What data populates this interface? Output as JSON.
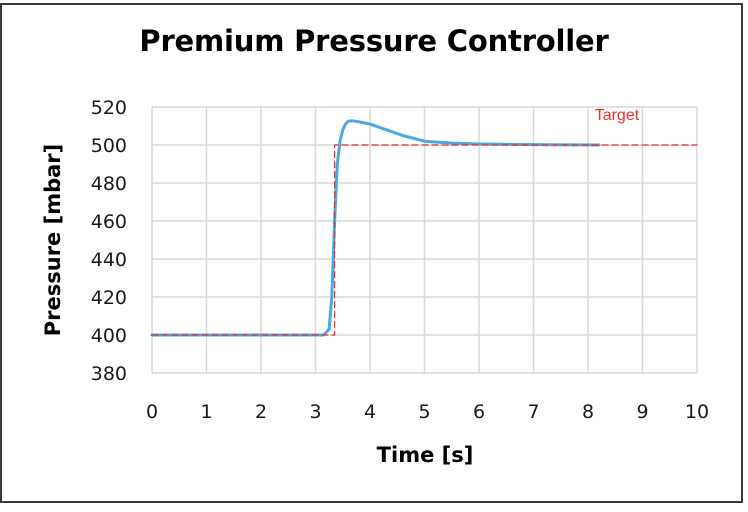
{
  "chart_data": {
    "type": "line",
    "title": "Premium Pressure Controller",
    "xlabel": "Time [s]",
    "ylabel": "Pressure [mbar]",
    "xlim": [
      0,
      10
    ],
    "ylim": [
      380,
      520
    ],
    "xticks": [
      0,
      1,
      2,
      3,
      4,
      5,
      6,
      7,
      8,
      9,
      10
    ],
    "yticks": [
      380,
      400,
      420,
      440,
      460,
      480,
      500,
      520
    ],
    "grid": true,
    "legend": null,
    "annotations": [
      {
        "text": "Target",
        "x": 8.6,
        "y": 517,
        "color": "#e8302a"
      }
    ],
    "series": [
      {
        "name": "Pressure",
        "style": "solid",
        "color": "#4aa9e3",
        "x": [
          0,
          1,
          2,
          3,
          3.15,
          3.25,
          3.3,
          3.35,
          3.4,
          3.45,
          3.5,
          3.55,
          3.6,
          3.67,
          3.8,
          4.0,
          4.3,
          4.6,
          5.0,
          5.5,
          6.0,
          7.0,
          8.2
        ],
        "y": [
          400,
          400,
          400,
          400,
          400,
          403,
          420,
          460,
          490,
          502,
          508,
          511,
          512.5,
          512.8,
          512.2,
          511,
          508,
          505,
          502,
          501,
          500.5,
          500.2,
          500
        ]
      },
      {
        "name": "Target",
        "style": "dashed",
        "color": "#e8302a",
        "x": [
          0,
          3.35,
          3.35,
          10
        ],
        "y": [
          400,
          400,
          500,
          500
        ]
      }
    ]
  }
}
